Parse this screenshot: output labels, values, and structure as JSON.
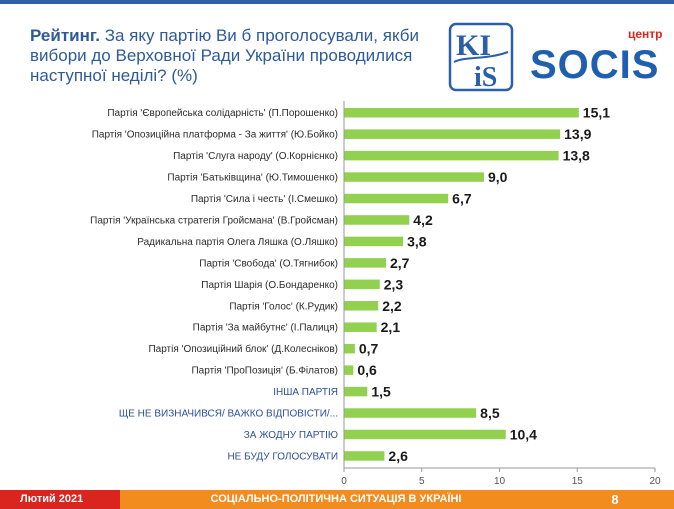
{
  "header": {
    "title_bold": "Рейтинг.",
    "title_rest": " За яку партію Ви б проголосували, якби вибори до Верховної Ради України проводилися наступної неділі? (%)"
  },
  "logo": {
    "kiis_top": "KI",
    "kiis_bottom": "iS",
    "socis_small": "центр",
    "socis_text": "SOCIS"
  },
  "footer": {
    "date": "Лютий 2021",
    "title": "СОЦІАЛЬНО-ПОЛІТИЧНА СИТУАЦІЯ В УКРАЇНІ",
    "page": "8"
  },
  "colors": {
    "bar": "#92d050",
    "title": "#2e5a99",
    "footer_red": "#d9251d",
    "footer_orange": "#f28c1e",
    "kiis_blue": "#2b60a8",
    "socis_blue": "#1f5fb0",
    "socis_red": "#d9251d"
  },
  "chart_data": {
    "type": "bar",
    "orientation": "horizontal",
    "categories": [
      "Партія 'Європейська солідарність' (П.Порошенко)",
      "Партія 'Опозиційна платформа - За життя' (Ю.Бойко)",
      "Партія 'Слуга народу' (О.Корнієнко)",
      "Партія 'Батьківщина' (Ю.Тимошенко)",
      "Партія 'Сила і честь' (І.Смешко)",
      "Партія 'Українська стратегія Гройсмана' (В.Гройсман)",
      "Радикальна партія Олега Ляшка (О.Ляшко)",
      "Партія 'Свобода' (О.Тягнибок)",
      "Партія Шарія (О.Бондаренко)",
      "Партія 'Голос' (К.Рудик)",
      "Партія 'За майбутнє' (І.Палиця)",
      "Партія 'Опозиційний блок' (Д.Колесніков)",
      "Партія 'ПроПозиція' (Б.Філатов)",
      "ІНША ПАРТІЯ",
      "ЩЕ НЕ ВИЗНАЧИВСЯ/ ВАЖКО ВІДПОВІСТИ/...",
      "ЗА ЖОДНУ ПАРТІЮ",
      "НЕ БУДУ ГОЛОСУВАТИ"
    ],
    "values": [
      15.1,
      13.9,
      13.8,
      9.0,
      6.7,
      4.2,
      3.8,
      2.7,
      2.3,
      2.2,
      2.1,
      0.7,
      0.6,
      1.5,
      8.5,
      10.4,
      2.6
    ],
    "value_labels": [
      "15,1",
      "13,9",
      "13,8",
      "9,0",
      "6,7",
      "4,2",
      "3,8",
      "2,7",
      "2,3",
      "2,2",
      "2,1",
      "0,7",
      "0,6",
      "1,5",
      "8,5",
      "10,4",
      "2,6"
    ],
    "uppercase_categories": [
      13,
      14,
      15,
      16
    ],
    "xlim": [
      0,
      20
    ],
    "xticks": [
      0,
      5,
      10,
      15,
      20
    ],
    "grid": false,
    "legend": "none"
  }
}
